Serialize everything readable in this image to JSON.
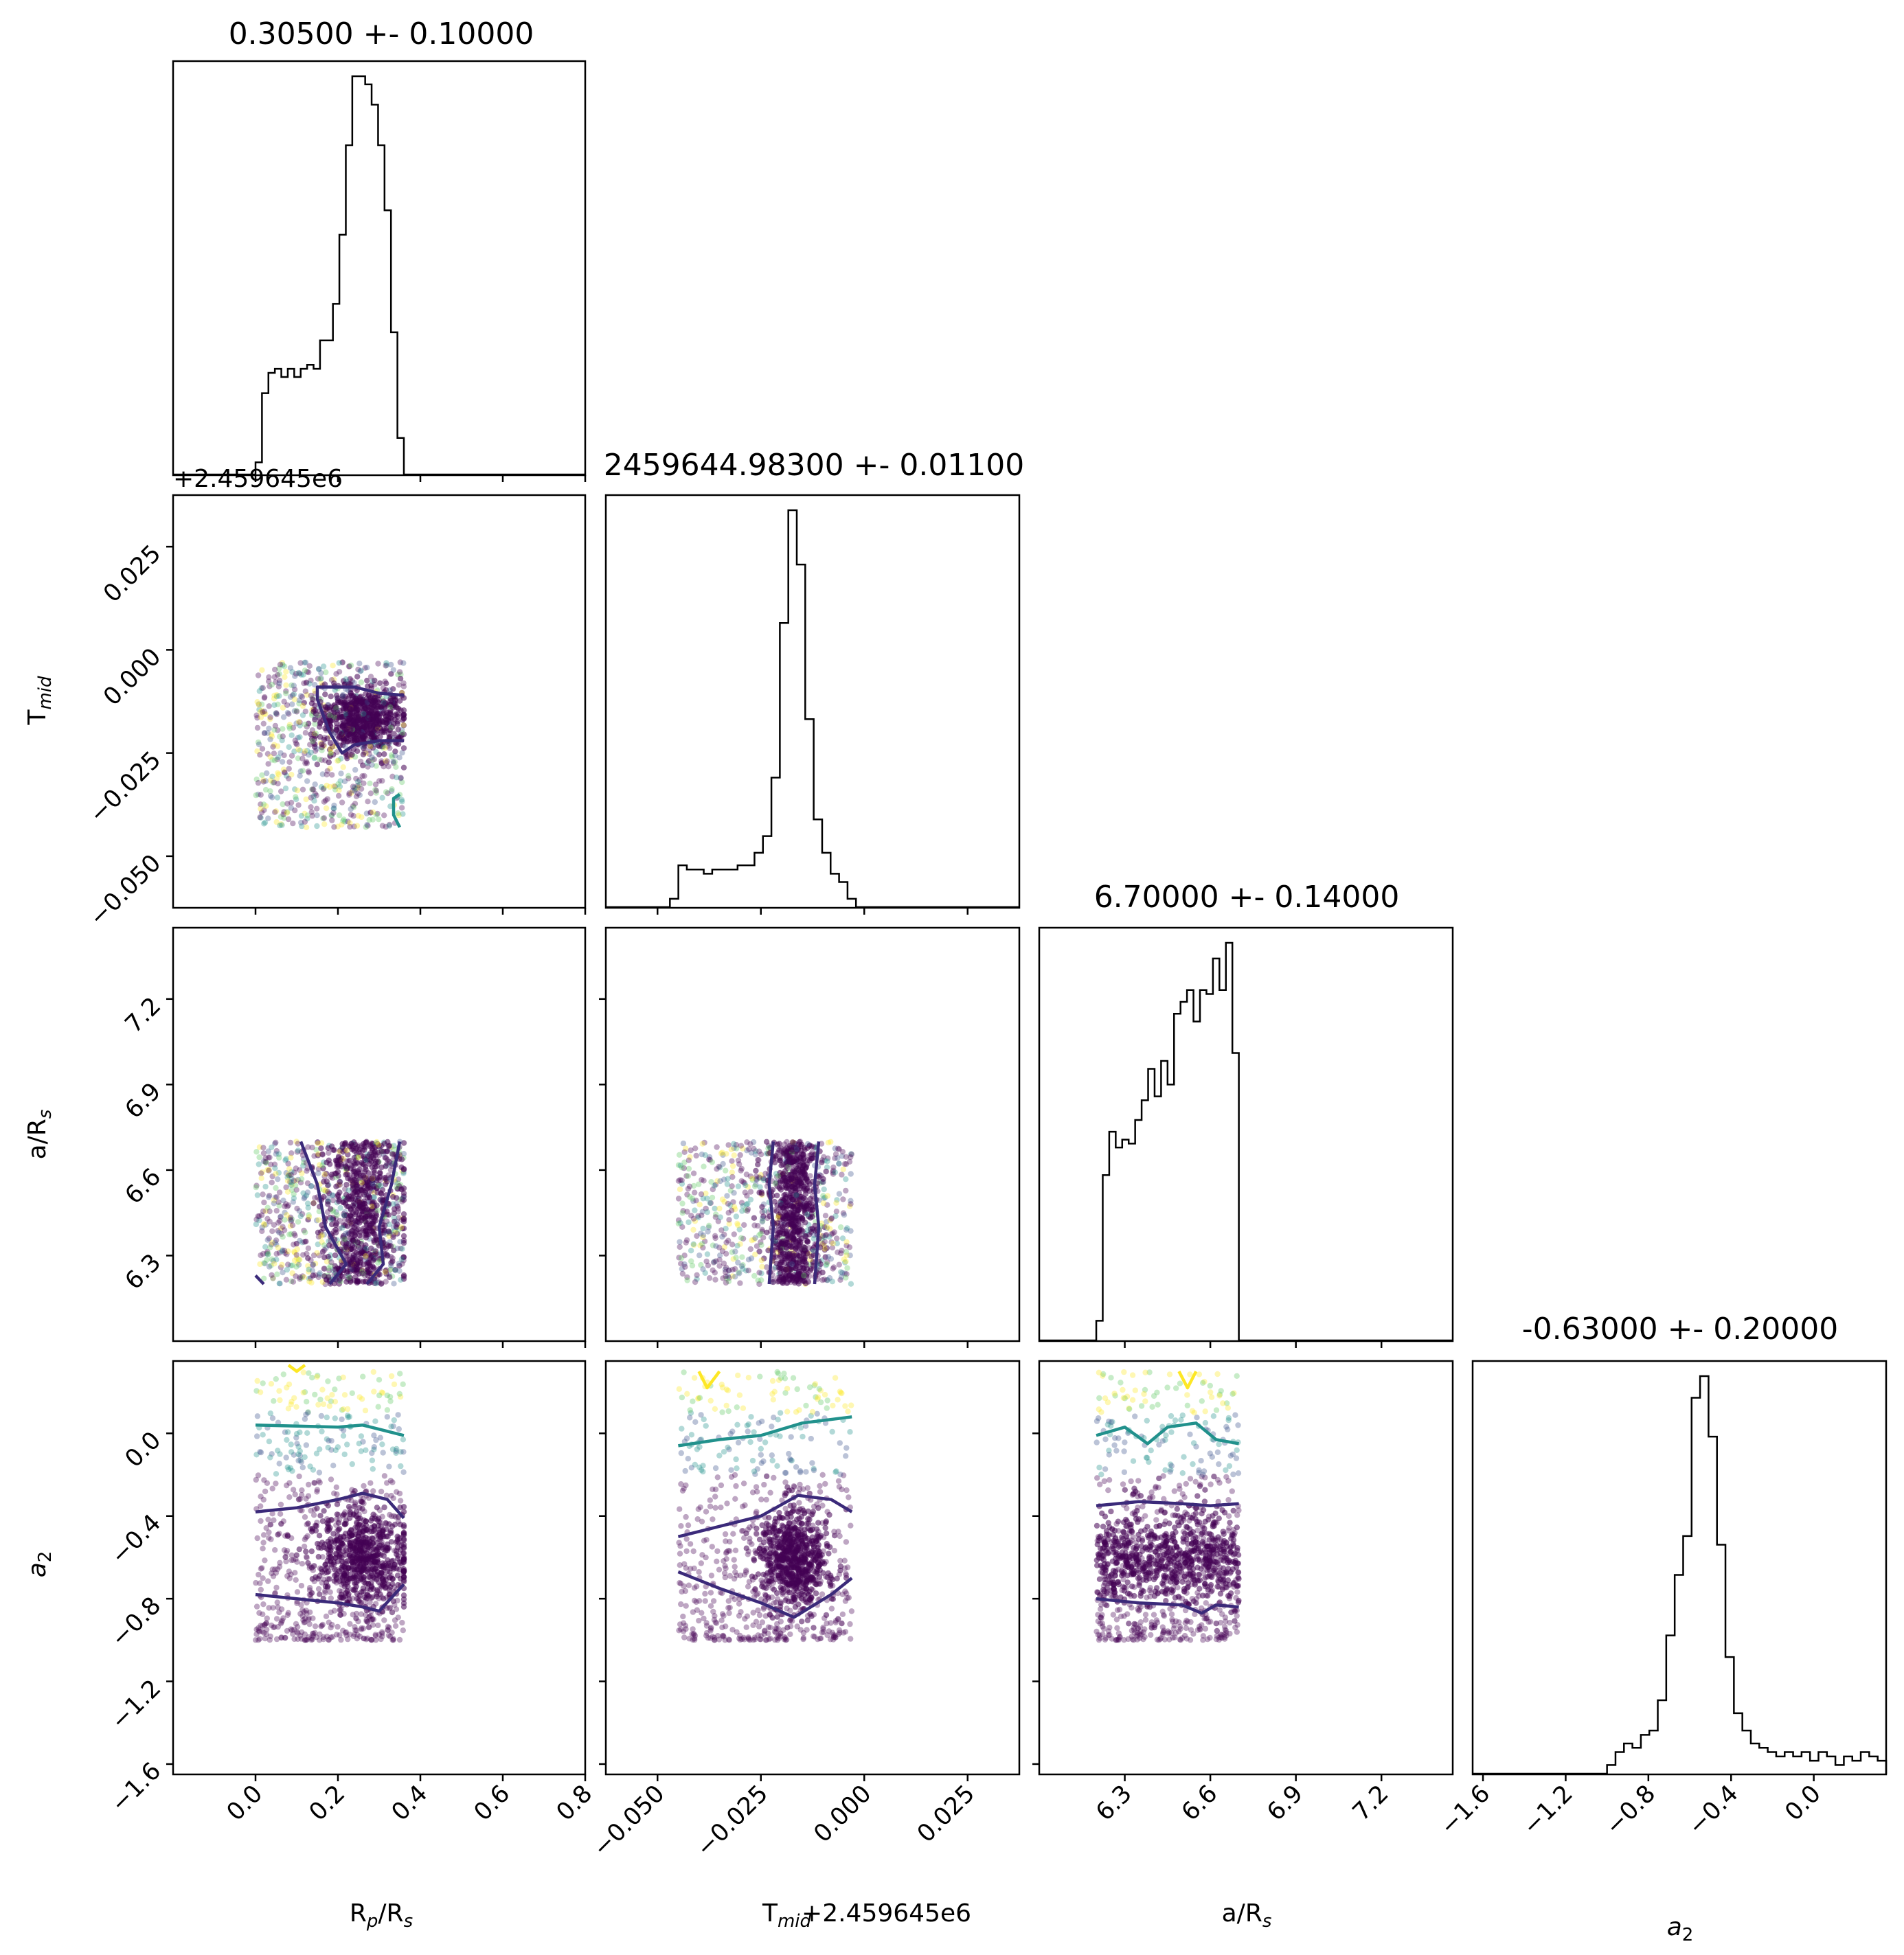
{
  "figure": {
    "type": "corner-plot",
    "parameters": [
      "Rp/Rs",
      "Tmid",
      "a/Rs",
      "a2"
    ]
  },
  "chart_data": [
    {
      "id": "hist-rp",
      "type": "bar",
      "title": "0.30500 +- 0.10000",
      "xlim": [
        -0.2,
        0.8
      ],
      "xticks": [
        "0.0",
        "0.2",
        "0.4",
        "0.6",
        "0.8"
      ],
      "xtick_values": [
        0.0,
        0.2,
        0.4,
        0.6,
        0.8
      ],
      "bin_edges_range": [
        0.0,
        0.36
      ],
      "values": [
        0.03,
        0.2,
        0.25,
        0.26,
        0.24,
        0.26,
        0.24,
        0.26,
        0.27,
        0.26,
        0.33,
        0.33,
        0.42,
        0.59,
        0.81,
        0.98,
        0.98,
        0.96,
        0.91,
        0.81,
        0.65,
        0.35,
        0.09
      ]
    },
    {
      "id": "hist-tmid",
      "type": "bar",
      "title": "2459644.98300 +- 0.01100",
      "xlim": [
        -0.0625,
        0.0375
      ],
      "xticks": [
        "−0.050",
        "−0.025",
        "0.000",
        "0.025"
      ],
      "xtick_values": [
        -0.05,
        -0.025,
        0.0,
        0.025
      ],
      "bin_edges_range": [
        -0.047,
        -0.002
      ],
      "values": [
        0.02,
        0.1,
        0.09,
        0.09,
        0.08,
        0.09,
        0.09,
        0.09,
        0.1,
        0.1,
        0.13,
        0.17,
        0.31,
        0.68,
        0.95,
        0.82,
        0.45,
        0.21,
        0.13,
        0.08,
        0.06,
        0.02
      ]
    },
    {
      "id": "hist-ars",
      "type": "bar",
      "title": "6.70000 +- 0.14000",
      "xlim": [
        6.0,
        7.45
      ],
      "xticks": [
        "6.3",
        "6.6",
        "6.9",
        "7.2"
      ],
      "xtick_values": [
        6.3,
        6.6,
        6.9,
        7.2
      ],
      "bin_edges_range": [
        6.2,
        6.7
      ],
      "values": [
        0.05,
        0.42,
        0.53,
        0.49,
        0.51,
        0.5,
        0.56,
        0.61,
        0.69,
        0.62,
        0.71,
        0.65,
        0.83,
        0.86,
        0.89,
        0.81,
        0.89,
        0.88,
        0.97,
        0.89,
        1.01,
        0.73
      ]
    },
    {
      "id": "hist-a2",
      "type": "bar",
      "title": "-0.63000 +- 0.20000",
      "xlim": [
        -1.65,
        0.35
      ],
      "xticks": [
        "−1.6",
        "−1.2",
        "−0.8",
        "−0.4",
        "0.0"
      ],
      "xtick_values": [
        -1.6,
        -1.2,
        -0.8,
        -0.4,
        0.0
      ],
      "bin_edges_range": [
        -1.0,
        0.35
      ],
      "values": [
        0.02,
        0.05,
        0.07,
        0.06,
        0.09,
        0.1,
        0.17,
        0.32,
        0.46,
        0.55,
        0.87,
        0.92,
        0.78,
        0.53,
        0.27,
        0.14,
        0.1,
        0.07,
        0.06,
        0.05,
        0.04,
        0.05,
        0.04,
        0.05,
        0.03,
        0.05,
        0.04,
        0.02,
        0.04,
        0.03,
        0.05,
        0.04,
        0.03
      ]
    },
    {
      "id": "scatter-rp-tmid",
      "type": "scatter",
      "x_param": "Rp/Rs",
      "y_param": "Tmid",
      "x_range": [
        0.0,
        0.36
      ],
      "y_range": [
        -0.043,
        -0.003
      ],
      "y_center": -0.017
    },
    {
      "id": "scatter-rp-ars",
      "type": "scatter",
      "x_param": "Rp/Rs",
      "y_param": "a/Rs",
      "x_range": [
        0.0,
        0.36
      ],
      "y_range": [
        6.2,
        6.7
      ]
    },
    {
      "id": "scatter-tmid-ars",
      "type": "scatter",
      "x_param": "Tmid",
      "y_param": "a/Rs",
      "x_range": [
        -0.045,
        -0.003
      ],
      "y_range": [
        6.2,
        6.7
      ]
    },
    {
      "id": "scatter-rp-a2",
      "type": "scatter",
      "x_param": "Rp/Rs",
      "y_param": "a2",
      "x_range": [
        0.0,
        0.36
      ],
      "y_range": [
        -1.0,
        0.3
      ]
    },
    {
      "id": "scatter-tmid-a2",
      "type": "scatter",
      "x_param": "Tmid",
      "y_param": "a2",
      "x_range": [
        -0.045,
        -0.003
      ],
      "y_range": [
        -1.0,
        0.3
      ]
    },
    {
      "id": "scatter-ars-a2",
      "type": "scatter",
      "x_param": "a/Rs",
      "y_param": "a2",
      "x_range": [
        6.2,
        6.7
      ],
      "y_range": [
        -1.0,
        0.3
      ]
    }
  ],
  "axes": {
    "tmid_ylim": [
      -0.0625,
      0.0375
    ],
    "tmid_yticks": [
      "0.025",
      "0.000",
      "−0.025",
      "−0.050"
    ],
    "tmid_ytick_values": [
      0.025,
      0.0,
      -0.025,
      -0.05
    ],
    "ars_ylim": [
      6.0,
      7.45
    ],
    "ars_yticks": [
      "7.2",
      "6.9",
      "6.6",
      "6.3"
    ],
    "ars_ytick_values": [
      7.2,
      6.9,
      6.6,
      6.3
    ],
    "a2_ylim": [
      -1.65,
      0.35
    ],
    "a2_yticks": [
      "0.0",
      "−0.4",
      "−0.8",
      "−1.2",
      "−1.6"
    ],
    "a2_ytick_values": [
      0.0,
      -0.4,
      -0.8,
      -1.2,
      -1.6
    ],
    "offset_label": "+2.459645e6"
  },
  "labels": {
    "ylabel_tmid_main": "T",
    "ylabel_tmid_sub": "mid",
    "ylabel_ars_main": "a/R",
    "ylabel_ars_sub": "s",
    "ylabel_a2_main": "a",
    "ylabel_a2_sub": "2",
    "xlabel_rp_main": "R",
    "xlabel_rp_sub": "p",
    "xlabel_rp_mid": "/R",
    "xlabel_rp_sub2": "s",
    "xlabel_tmid_main": "T",
    "xlabel_tmid_sub": "mid",
    "xlabel_tmid_offset": "+2.459645e6",
    "xlabel_ars_main": "a/R",
    "xlabel_ars_sub": "s",
    "xlabel_a2_main": "a",
    "xlabel_a2_sub": "2"
  },
  "colors": {
    "dark": "#440154",
    "mid": "#21918c",
    "light": "#fde725",
    "contour_dark": "#3b2a7a",
    "contour_mid": "#21918c",
    "contour_light": "#fde725"
  }
}
